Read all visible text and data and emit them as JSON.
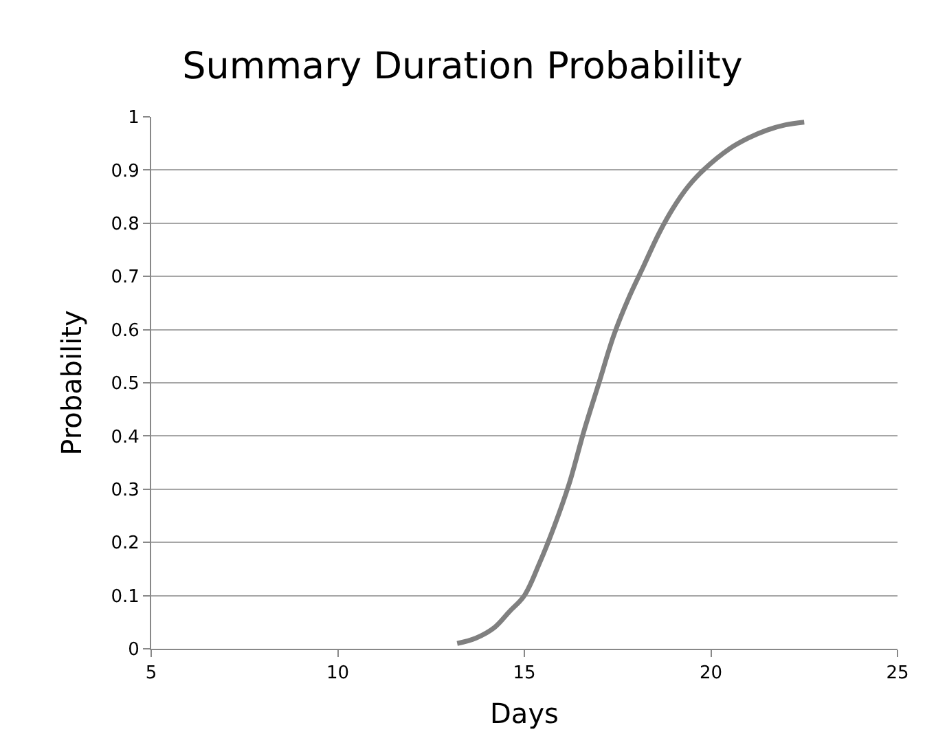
{
  "chart_data": {
    "type": "line",
    "title": "Summary Duration Probability",
    "xlabel": "Days",
    "ylabel": "Probability",
    "x": [
      13.2,
      13.7,
      14.2,
      14.6,
      15.0,
      15.4,
      15.8,
      16.2,
      16.6,
      17.0,
      17.4,
      17.8,
      18.2,
      18.6,
      19.0,
      19.4,
      19.8,
      20.5,
      21.0,
      21.5,
      22.0,
      22.5
    ],
    "series": [
      {
        "color": "#808080",
        "values": [
          0.01,
          0.02,
          0.04,
          0.07,
          0.1,
          0.16,
          0.23,
          0.31,
          0.41,
          0.5,
          0.59,
          0.66,
          0.72,
          0.78,
          0.83,
          0.87,
          0.9,
          0.94,
          0.96,
          0.975,
          0.985,
          0.99
        ]
      }
    ],
    "xlim": [
      5,
      25
    ],
    "xticks": [
      5,
      10,
      15,
      20,
      25
    ],
    "ylim": [
      0,
      1
    ],
    "yticks": [
      0,
      0.1,
      0.2,
      0.3,
      0.4,
      0.5,
      0.6,
      0.7,
      0.8,
      0.9,
      1
    ],
    "grid": "y",
    "legend": false,
    "marker": "none",
    "line_style": "solid"
  }
}
